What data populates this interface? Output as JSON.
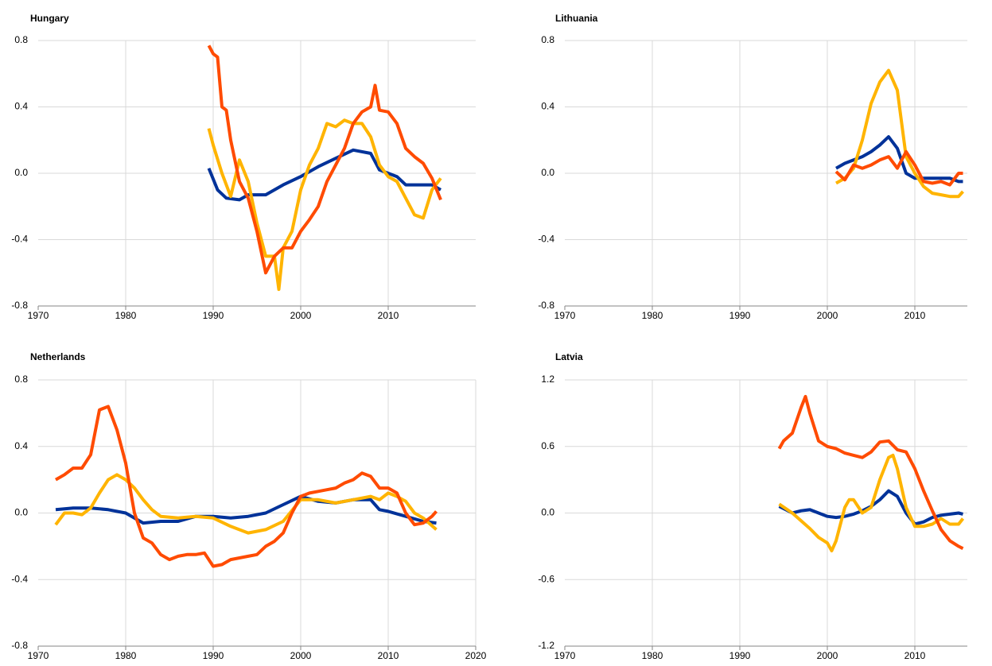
{
  "chart_data": [
    {
      "type": "line",
      "title": "Hungary",
      "xlim": [
        1970,
        2020
      ],
      "xticks": [
        1970,
        1980,
        1990,
        2000,
        2010
      ],
      "ylim": [
        -0.8,
        0.8
      ],
      "yticks": [
        -0.8,
        -0.4,
        {
          "value": 0,
          "label": "0.0"
        },
        0.4,
        0.8
      ],
      "grid": true,
      "series": [
        {
          "color": "#003299",
          "x": [
            1989.5,
            1990.5,
            1991.5,
            1993,
            1994,
            1996,
            1998,
            2000,
            2002,
            2004,
            2006,
            2008,
            2009,
            2011,
            2012,
            2014,
            2015,
            2016
          ],
          "values": [
            0.03,
            -0.1,
            -0.15,
            -0.16,
            -0.13,
            -0.13,
            -0.07,
            -0.02,
            0.04,
            0.09,
            0.14,
            0.12,
            0.02,
            -0.02,
            -0.07,
            -0.07,
            -0.07,
            -0.1
          ]
        },
        {
          "color": "#ffb400",
          "x": [
            1989.5,
            1990,
            1991,
            1992,
            1993,
            1994,
            1995,
            1996,
            1997,
            1997.5,
            1998,
            1999,
            2000,
            2001,
            2002,
            2003,
            2004,
            2005,
            2006,
            2007,
            2008,
            2009,
            2010,
            2011,
            2012,
            2013,
            2014,
            2015,
            2016
          ],
          "values": [
            0.27,
            0.17,
            0.0,
            -0.14,
            0.08,
            -0.05,
            -0.3,
            -0.5,
            -0.5,
            -0.7,
            -0.45,
            -0.35,
            -0.1,
            0.05,
            0.15,
            0.3,
            0.28,
            0.32,
            0.3,
            0.3,
            0.22,
            0.05,
            -0.02,
            -0.05,
            -0.15,
            -0.25,
            -0.27,
            -0.1,
            -0.03
          ]
        },
        {
          "color": "#ff4b00",
          "x": [
            1989.5,
            1990,
            1990.5,
            1991,
            1991.5,
            1992,
            1993,
            1994,
            1995,
            1996,
            1997,
            1998,
            1999,
            2000,
            2001,
            2002,
            2003,
            2004,
            2005,
            2006,
            2007,
            2008,
            2008.5,
            2009,
            2010,
            2011,
            2012,
            2013,
            2014,
            2015,
            2016
          ],
          "values": [
            0.77,
            0.72,
            0.7,
            0.4,
            0.38,
            0.2,
            -0.05,
            -0.15,
            -0.35,
            -0.6,
            -0.5,
            -0.45,
            -0.45,
            -0.35,
            -0.28,
            -0.2,
            -0.05,
            0.05,
            0.15,
            0.3,
            0.37,
            0.4,
            0.53,
            0.38,
            0.37,
            0.3,
            0.15,
            0.1,
            0.06,
            -0.03,
            -0.16
          ]
        }
      ]
    },
    {
      "type": "line",
      "title": "Lithuania",
      "xlim": [
        1970,
        2016
      ],
      "xticks": [
        1970,
        1980,
        1990,
        2000,
        2010
      ],
      "ylim": [
        -0.8,
        0.8
      ],
      "yticks": [
        -0.8,
        -0.4,
        {
          "value": 0,
          "label": "0.0"
        },
        0.4,
        0.8
      ],
      "grid": true,
      "series": [
        {
          "color": "#003299",
          "x": [
            2001,
            2002,
            2003,
            2004,
            2005,
            2006,
            2007,
            2008,
            2009,
            2010,
            2011,
            2012,
            2013,
            2014,
            2015,
            2015.5
          ],
          "values": [
            0.03,
            0.06,
            0.08,
            0.1,
            0.13,
            0.17,
            0.22,
            0.15,
            0.0,
            -0.03,
            -0.03,
            -0.03,
            -0.03,
            -0.03,
            -0.05,
            -0.05
          ]
        },
        {
          "color": "#ffb400",
          "x": [
            2001,
            2002,
            2003,
            2004,
            2005,
            2006,
            2007,
            2008,
            2009,
            2010,
            2011,
            2012,
            2013,
            2014,
            2015,
            2015.5
          ],
          "values": [
            -0.06,
            -0.03,
            0.03,
            0.2,
            0.42,
            0.55,
            0.62,
            0.5,
            0.1,
            0.0,
            -0.08,
            -0.12,
            -0.13,
            -0.14,
            -0.14,
            -0.11
          ]
        },
        {
          "color": "#ff4b00",
          "x": [
            2001,
            2002,
            2003,
            2004,
            2005,
            2006,
            2007,
            2008,
            2009,
            2010,
            2011,
            2012,
            2013,
            2014,
            2015,
            2015.5
          ],
          "values": [
            0.01,
            -0.04,
            0.05,
            0.03,
            0.05,
            0.08,
            0.1,
            0.03,
            0.13,
            0.05,
            -0.05,
            -0.06,
            -0.05,
            -0.07,
            0.0,
            0.0
          ]
        }
      ]
    },
    {
      "type": "line",
      "title": "Netherlands",
      "xlim": [
        1970,
        2020
      ],
      "xticks": [
        1970,
        1980,
        1990,
        2000,
        2010,
        2020
      ],
      "ylim": [
        -0.8,
        0.8
      ],
      "yticks": [
        -0.8,
        -0.4,
        {
          "value": 0,
          "label": "0.0"
        },
        0.4,
        0.8
      ],
      "grid": true,
      "series": [
        {
          "color": "#003299",
          "x": [
            1972,
            1974,
            1976,
            1978,
            1980,
            1982,
            1984,
            1986,
            1988,
            1990,
            1992,
            1994,
            1996,
            1998,
            2000,
            2002,
            2004,
            2006,
            2008,
            2009,
            2010,
            2012,
            2014,
            2015.5
          ],
          "values": [
            0.02,
            0.03,
            0.03,
            0.02,
            0.0,
            -0.06,
            -0.05,
            -0.05,
            -0.02,
            -0.02,
            -0.03,
            -0.02,
            0.0,
            0.05,
            0.1,
            0.07,
            0.06,
            0.08,
            0.08,
            0.02,
            0.01,
            -0.02,
            -0.05,
            -0.06
          ]
        },
        {
          "color": "#ffb400",
          "x": [
            1972,
            1973,
            1974,
            1975,
            1976,
            1977,
            1978,
            1979,
            1980,
            1981,
            1982,
            1983,
            1984,
            1986,
            1988,
            1990,
            1992,
            1994,
            1996,
            1998,
            2000,
            2002,
            2004,
            2006,
            2008,
            2009,
            2010,
            2011,
            2012,
            2013,
            2014,
            2015.5
          ],
          "values": [
            -0.07,
            0.0,
            0.0,
            -0.01,
            0.03,
            0.12,
            0.2,
            0.23,
            0.2,
            0.15,
            0.08,
            0.02,
            -0.02,
            -0.03,
            -0.02,
            -0.03,
            -0.08,
            -0.12,
            -0.1,
            -0.05,
            0.08,
            0.08,
            0.06,
            0.08,
            0.1,
            0.08,
            0.12,
            0.1,
            0.07,
            0.0,
            -0.03,
            -0.1
          ]
        },
        {
          "color": "#ff4b00",
          "x": [
            1972,
            1973,
            1974,
            1975,
            1976,
            1977,
            1978,
            1979,
            1980,
            1981,
            1982,
            1983,
            1984,
            1985,
            1986,
            1987,
            1988,
            1989,
            1990,
            1991,
            1992,
            1993,
            1994,
            1995,
            1996,
            1997,
            1998,
            1999,
            2000,
            2001,
            2002,
            2003,
            2004,
            2005,
            2006,
            2007,
            2008,
            2009,
            2010,
            2011,
            2012,
            2013,
            2014,
            2015,
            2015.5
          ],
          "values": [
            0.2,
            0.23,
            0.27,
            0.27,
            0.35,
            0.62,
            0.64,
            0.5,
            0.3,
            0.0,
            -0.15,
            -0.18,
            -0.25,
            -0.28,
            -0.26,
            -0.25,
            -0.25,
            -0.24,
            -0.32,
            -0.31,
            -0.28,
            -0.27,
            -0.26,
            -0.25,
            -0.2,
            -0.17,
            -0.12,
            0.0,
            0.1,
            0.12,
            0.13,
            0.14,
            0.15,
            0.18,
            0.2,
            0.24,
            0.22,
            0.15,
            0.15,
            0.12,
            0.0,
            -0.07,
            -0.06,
            -0.02,
            0.01
          ]
        }
      ]
    },
    {
      "type": "line",
      "title": "Latvia",
      "xlim": [
        1970,
        2016
      ],
      "xticks": [
        1970,
        1980,
        1990,
        2000,
        2010
      ],
      "ylim": [
        -1.2,
        1.2
      ],
      "yticks": [
        -1.2,
        -0.6,
        {
          "value": 0,
          "label": "0.0"
        },
        0.6,
        1.2
      ],
      "grid": true,
      "series": [
        {
          "color": "#003299",
          "x": [
            1994.5,
            1996,
            1997,
            1998,
            1999,
            2000,
            2001,
            2002,
            2003,
            2004,
            2005,
            2006,
            2007,
            2008,
            2009,
            2010,
            2011,
            2012,
            2013,
            2014,
            2015,
            2015.5
          ],
          "values": [
            0.06,
            0.0,
            0.02,
            0.03,
            0.0,
            -0.03,
            -0.04,
            -0.03,
            -0.01,
            0.02,
            0.06,
            0.12,
            0.2,
            0.15,
            0.0,
            -0.1,
            -0.08,
            -0.04,
            -0.02,
            -0.01,
            0.0,
            -0.01
          ]
        },
        {
          "color": "#ffb400",
          "x": [
            1994.5,
            1996,
            1997,
            1998,
            1999,
            2000,
            2000.5,
            2001,
            2002,
            2002.5,
            2003,
            2004,
            2005,
            2006,
            2007,
            2007.5,
            2008,
            2009,
            2010,
            2011,
            2012,
            2013,
            2014,
            2015,
            2015.5
          ],
          "values": [
            0.08,
            0.0,
            -0.07,
            -0.14,
            -0.22,
            -0.27,
            -0.34,
            -0.25,
            0.05,
            0.12,
            0.12,
            0.0,
            0.05,
            0.3,
            0.5,
            0.52,
            0.4,
            0.05,
            -0.12,
            -0.12,
            -0.1,
            -0.05,
            -0.1,
            -0.1,
            -0.05
          ]
        },
        {
          "color": "#ff4b00",
          "x": [
            1994.5,
            1995,
            1996,
            1997,
            1997.5,
            1998,
            1999,
            2000,
            2001,
            2002,
            2003,
            2004,
            2005,
            2006,
            2007,
            2008,
            2009,
            2010,
            2011,
            2012,
            2013,
            2014,
            2015,
            2015.5
          ],
          "values": [
            0.58,
            0.65,
            0.72,
            0.95,
            1.05,
            0.9,
            0.65,
            0.6,
            0.58,
            0.54,
            0.52,
            0.5,
            0.55,
            0.64,
            0.65,
            0.57,
            0.55,
            0.4,
            0.2,
            0.02,
            -0.15,
            -0.25,
            -0.3,
            -0.32
          ]
        }
      ]
    }
  ]
}
